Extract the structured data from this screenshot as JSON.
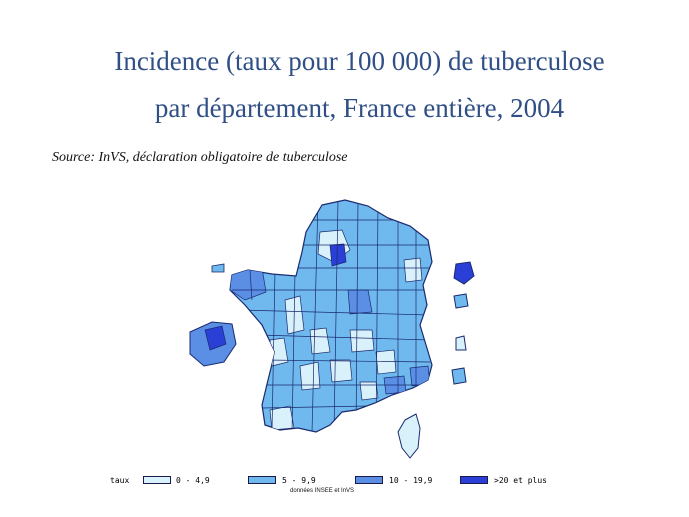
{
  "title_line1": "Incidence (taux pour 100 000) de tuberculose",
  "title_line2": "par département, France entière, 2004",
  "source": "Source: InVS, déclaration obligatoire de tuberculose",
  "legend": {
    "label": "taux",
    "classes": [
      {
        "label": "0 - 4,9",
        "color": "#d9f1fb"
      },
      {
        "label": "5 - 9,9",
        "color": "#6fb9ee"
      },
      {
        "label": "10 - 19,9",
        "color": "#5b8fe6"
      },
      {
        "label": ">20 et plus",
        "color": "#2a3fd6"
      }
    ]
  },
  "credit": "données INSEE et InVS",
  "colors": {
    "title": "#2f4f86",
    "border": "#1a2a6e"
  }
}
